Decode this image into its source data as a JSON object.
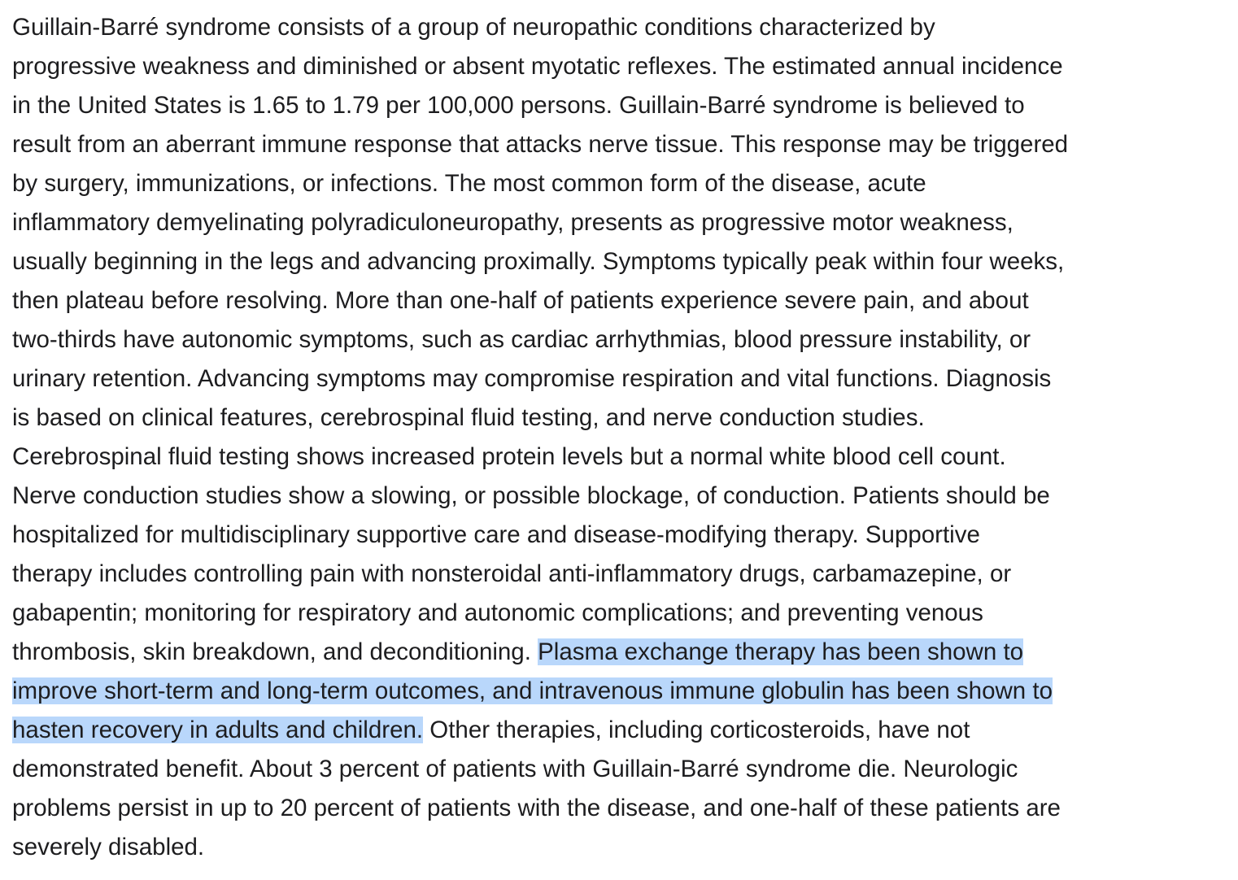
{
  "document": {
    "lines": [
      {
        "text": "Guillain-Barré syndrome consists of a group of neuropathic conditions characterized by"
      },
      {
        "text": "progressive weakness and diminished or absent myotatic reflexes. The estimated annual incidence"
      },
      {
        "text": "in the United States is 1.65 to 1.79 per 100,000 persons. Guillain-Barré syndrome is believed to"
      },
      {
        "text": "result from an aberrant immune response that attacks nerve tissue. This response may be triggered"
      },
      {
        "text": "by surgery, immunizations, or infections. The most common form of the disease, acute"
      },
      {
        "text": "inflammatory demyelinating polyradiculoneuropathy, presents as progressive motor weakness,"
      },
      {
        "text": "usually beginning in the legs and advancing proximally. Symptoms typically peak within four weeks,"
      },
      {
        "text": "then plateau before resolving. More than one-half of patients experience severe pain, and about"
      },
      {
        "text": "two-thirds have autonomic symptoms, such as cardiac arrhythmias, blood pressure instability, or"
      },
      {
        "text": "urinary retention. Advancing symptoms may compromise respiration and vital functions. Diagnosis"
      },
      {
        "text": "is based on clinical features, cerebrospinal fluid testing, and nerve conduction studies."
      },
      {
        "text": "Cerebrospinal fluid testing shows increased protein levels but a normal white blood cell count."
      },
      {
        "text": "Nerve conduction studies show a slowing, or possible blockage, of conduction. Patients should be"
      },
      {
        "text": "hospitalized for multidisciplinary supportive care and disease-modifying therapy. Supportive"
      },
      {
        "text": "therapy includes controlling pain with nonsteroidal anti-inflammatory drugs, carbamazepine, or"
      },
      {
        "text": "gabapentin; monitoring for respiratory and autonomic complications; and preventing venous"
      },
      {
        "text": "thrombosis, skin breakdown, and deconditioning. ",
        "highlight": "Plasma exchange therapy has been shown to"
      },
      {
        "highlight": "improve short-term and long-term outcomes, and intravenous immune globulin has been shown to"
      },
      {
        "highlight": "hasten recovery in adults and children.",
        "text": " Other therapies, including corticosteroids, have not"
      },
      {
        "text": "demonstrated benefit. About 3 percent of patients with Guillain-Barré syndrome die. Neurologic"
      },
      {
        "text": "problems persist in up to 20 percent of patients with the disease, and one-half of these patients are"
      },
      {
        "text": "severely disabled."
      }
    ],
    "selection_color": "#b9d7fb",
    "text_color": "#1d1d1f"
  }
}
